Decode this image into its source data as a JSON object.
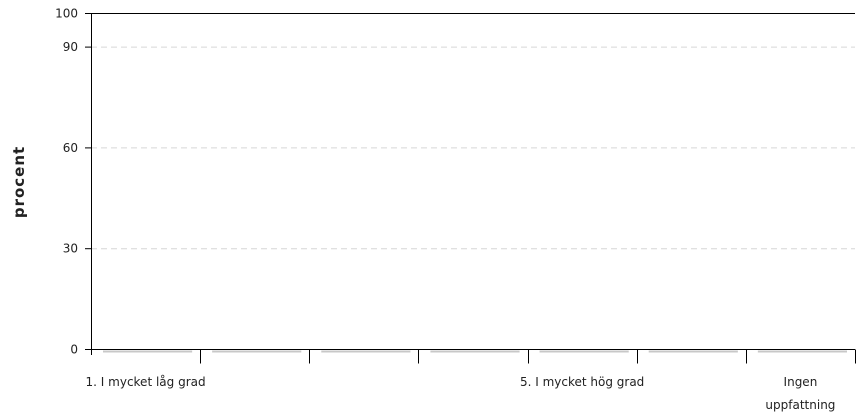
{
  "chart_data": {
    "type": "bar",
    "ylabel": "procent",
    "xlabel": "",
    "title": "",
    "ylim": [
      0,
      100
    ],
    "yticks": [
      0,
      30,
      60,
      90,
      100
    ],
    "gridlines_at": [
      30,
      60,
      90
    ],
    "grid": true,
    "categories": [
      "1. I mycket låg grad",
      "",
      "",
      "",
      "5. I mycket hög grad",
      "",
      "Ingen uppfattning"
    ],
    "series": [
      {
        "values": [
          0,
          0,
          0,
          0,
          0,
          0,
          0
        ]
      }
    ],
    "colors": {
      "axis": "#000000",
      "grid": "#d6d6d6",
      "baseline_segment": "#c8c8c8",
      "text": "#222222"
    }
  }
}
